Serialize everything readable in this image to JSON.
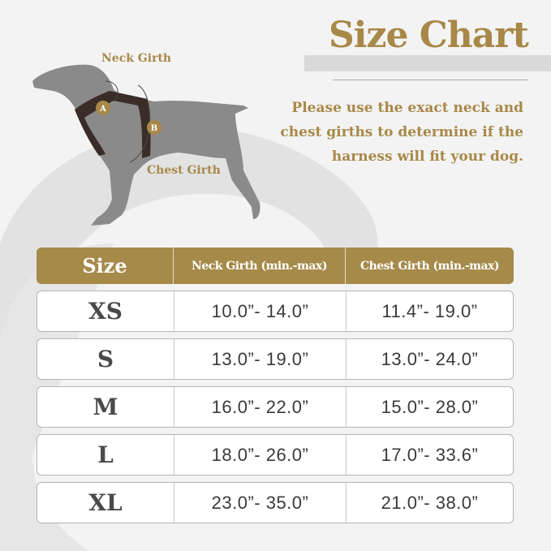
{
  "title": "Size Chart",
  "description": [
    "Please use the exact neck and",
    "chest girths to determine if the",
    "harness will fit your dog."
  ],
  "diagram": {
    "neck_label": "Neck Girth",
    "chest_label": "Chest Girth",
    "marker_a": "A",
    "marker_b": "B"
  },
  "table": {
    "headers": [
      "Size",
      "Neck Girth (min.-max)",
      "Chest Girth (min.-max)"
    ],
    "rows": [
      {
        "size": "XS",
        "neck": "10.0”- 14.0”",
        "chest": "11.4”- 19.0”"
      },
      {
        "size": "S",
        "neck": "13.0”- 19.0”",
        "chest": "13.0”- 24.0”"
      },
      {
        "size": "M",
        "neck": "16.0”- 22.0”",
        "chest": "15.0”- 28.0”"
      },
      {
        "size": "L",
        "neck": "18.0”- 26.0”",
        "chest": "17.0”- 33.6”"
      },
      {
        "size": "XL",
        "neck": "23.0”- 35.0”",
        "chest": "21.0”- 38.0”"
      }
    ]
  },
  "colors": {
    "accent": "#a68a4a",
    "dog": "#8a8a8a",
    "harness": "#3a2c26",
    "background": "#f3f3f3"
  }
}
